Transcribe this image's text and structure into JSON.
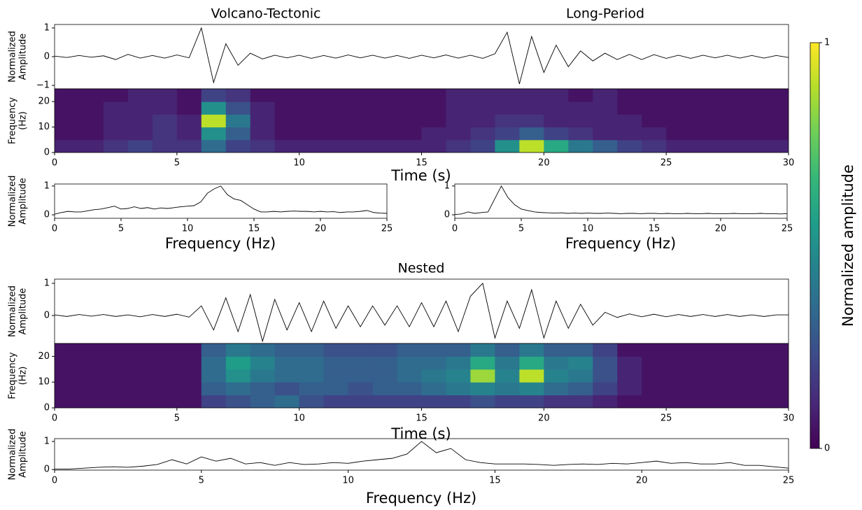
{
  "chart_data": [
    {
      "type": "line",
      "titles": [
        "Volcano-Tectonic",
        "Long-Period"
      ],
      "ylabel": [
        "Normalized",
        "Amplitude"
      ],
      "color": "#000000",
      "x": [
        0,
        0.5,
        1,
        1.5,
        2,
        2.5,
        3,
        3.5,
        4,
        4.5,
        5,
        5.5,
        6,
        6.5,
        7,
        7.5,
        8,
        8.5,
        9,
        9.5,
        10,
        10.5,
        11,
        11.5,
        12,
        12.5,
        13,
        13.5,
        14,
        14.5,
        15,
        15.5,
        16,
        16.5,
        17,
        17.5,
        18,
        18.5,
        19,
        19.5,
        20,
        20.5,
        21,
        21.5,
        22,
        22.5,
        23,
        23.5,
        24,
        24.5,
        25,
        25.5,
        26,
        26.5,
        27,
        27.5,
        28,
        28.5,
        29,
        29.5,
        30
      ],
      "values": [
        0.02,
        -0.03,
        0.04,
        -0.02,
        0.03,
        -0.1,
        0.08,
        -0.05,
        0.04,
        -0.05,
        0.06,
        -0.04,
        1.0,
        -0.9,
        0.45,
        -0.3,
        0.12,
        -0.08,
        0.05,
        -0.04,
        0.05,
        -0.06,
        0.04,
        -0.05,
        0.06,
        -0.04,
        0.05,
        -0.05,
        0.04,
        -0.06,
        0.05,
        -0.04,
        0.06,
        -0.05,
        0.05,
        -0.06,
        0.1,
        0.85,
        -0.95,
        0.7,
        -0.55,
        0.4,
        -0.35,
        0.2,
        -0.15,
        0.12,
        -0.1,
        0.08,
        -0.1,
        0.07,
        -0.06,
        0.05,
        -0.06,
        0.05,
        -0.04,
        0.05,
        -0.05,
        0.04,
        -0.05,
        0.04,
        -0.03
      ],
      "xlim": [
        0,
        30
      ],
      "ylim": [
        -1.12,
        1.12
      ],
      "yticks": [
        {
          "value": -1,
          "label": "−1"
        },
        0,
        1
      ]
    },
    {
      "type": "heatmap",
      "xlabel": "Time (s)",
      "ylabel": [
        "Frequency",
        "(Hz)"
      ],
      "xbins": [
        0,
        1,
        2,
        3,
        4,
        5,
        6,
        7,
        8,
        9,
        10,
        11,
        12,
        13,
        14,
        15,
        16,
        17,
        18,
        19,
        20,
        21,
        22,
        23,
        24,
        25,
        26,
        27,
        28,
        29,
        30
      ],
      "ybins": [
        0,
        5,
        10,
        15,
        20,
        25
      ],
      "values": [
        [
          0.1,
          0.1,
          0.15,
          0.2,
          0.15,
          0.15,
          0.35,
          0.2,
          0.15,
          0.1,
          0.1,
          0.1,
          0.1,
          0.1,
          0.1,
          0.1,
          0.15,
          0.2,
          0.5,
          0.9,
          0.6,
          0.4,
          0.3,
          0.2,
          0.15,
          0.1,
          0.1,
          0.1,
          0.1,
          0.1
        ],
        [
          0.05,
          0.05,
          0.1,
          0.1,
          0.15,
          0.1,
          0.5,
          0.3,
          0.1,
          0.05,
          0.05,
          0.05,
          0.05,
          0.05,
          0.05,
          0.1,
          0.1,
          0.15,
          0.2,
          0.3,
          0.2,
          0.15,
          0.1,
          0.1,
          0.1,
          0.05,
          0.05,
          0.05,
          0.05,
          0.05
        ],
        [
          0.05,
          0.05,
          0.1,
          0.1,
          0.15,
          0.1,
          0.9,
          0.4,
          0.1,
          0.05,
          0.05,
          0.05,
          0.05,
          0.05,
          0.05,
          0.05,
          0.1,
          0.1,
          0.15,
          0.15,
          0.1,
          0.1,
          0.1,
          0.1,
          0.05,
          0.05,
          0.05,
          0.05,
          0.05,
          0.05
        ],
        [
          0.05,
          0.05,
          0.1,
          0.1,
          0.1,
          0.05,
          0.5,
          0.25,
          0.1,
          0.05,
          0.05,
          0.05,
          0.05,
          0.05,
          0.05,
          0.05,
          0.1,
          0.1,
          0.1,
          0.1,
          0.1,
          0.1,
          0.1,
          0.05,
          0.05,
          0.05,
          0.05,
          0.05,
          0.05,
          0.05
        ],
        [
          0.05,
          0.05,
          0.05,
          0.1,
          0.1,
          0.05,
          0.2,
          0.15,
          0.05,
          0.05,
          0.05,
          0.05,
          0.05,
          0.05,
          0.05,
          0.05,
          0.1,
          0.1,
          0.1,
          0.1,
          0.1,
          0.05,
          0.1,
          0.05,
          0.05,
          0.05,
          0.05,
          0.05,
          0.05,
          0.05
        ]
      ],
      "xlim": [
        0,
        30
      ],
      "ylim": [
        0,
        25
      ],
      "xticks": [
        0,
        5,
        10,
        15,
        20,
        25,
        30
      ],
      "yticks": [
        0,
        10,
        20
      ]
    },
    {
      "type": "line",
      "xlabel": "Frequency (Hz)",
      "ylabel": [
        "Normalized",
        "Amplitude"
      ],
      "color": "#000000",
      "x": [
        0,
        0.5,
        1,
        1.5,
        2,
        2.5,
        3,
        3.5,
        4,
        4.5,
        5,
        5.5,
        6,
        6.5,
        7,
        7.5,
        8,
        8.5,
        9,
        9.5,
        10,
        10.5,
        11,
        11.5,
        12,
        12.5,
        13,
        13.5,
        14,
        14.5,
        15,
        15.5,
        16,
        16.5,
        17,
        17.5,
        18,
        18.5,
        19,
        19.5,
        20,
        20.5,
        21,
        21.5,
        22,
        22.5,
        23,
        23.5,
        24,
        24.5,
        25
      ],
      "values": [
        0.02,
        0.08,
        0.12,
        0.1,
        0.1,
        0.14,
        0.18,
        0.2,
        0.25,
        0.3,
        0.2,
        0.22,
        0.28,
        0.22,
        0.25,
        0.2,
        0.24,
        0.22,
        0.25,
        0.28,
        0.3,
        0.32,
        0.45,
        0.75,
        0.9,
        1.0,
        0.7,
        0.55,
        0.5,
        0.35,
        0.2,
        0.1,
        0.1,
        0.12,
        0.1,
        0.12,
        0.13,
        0.12,
        0.12,
        0.1,
        0.12,
        0.1,
        0.11,
        0.08,
        0.1,
        0.1,
        0.12,
        0.15,
        0.08,
        0.06,
        0.05
      ],
      "xlim": [
        0,
        25
      ],
      "ylim": [
        -0.12,
        1.07
      ],
      "xticks": [
        0,
        5,
        10,
        15,
        20,
        25
      ],
      "yticks": [
        0,
        1
      ]
    },
    {
      "type": "line",
      "xlabel": "Frequency (Hz)",
      "color": "#000000",
      "x": [
        0,
        0.5,
        1,
        1.5,
        2,
        2.5,
        3,
        3.5,
        4,
        4.5,
        5,
        5.5,
        6,
        6.5,
        7,
        7.5,
        8,
        8.5,
        9,
        9.5,
        10,
        10.5,
        11,
        11.5,
        12,
        12.5,
        13,
        13.5,
        14,
        14.5,
        15,
        15.5,
        16,
        16.5,
        17,
        17.5,
        18,
        18.5,
        19,
        19.5,
        20,
        20.5,
        21,
        21.5,
        22,
        22.5,
        23,
        23.5,
        24,
        24.5,
        25
      ],
      "values": [
        0.01,
        0.03,
        0.1,
        0.05,
        0.08,
        0.1,
        0.55,
        1.0,
        0.6,
        0.35,
        0.2,
        0.15,
        0.1,
        0.08,
        0.07,
        0.06,
        0.07,
        0.05,
        0.06,
        0.05,
        0.06,
        0.05,
        0.05,
        0.06,
        0.05,
        0.04,
        0.05,
        0.05,
        0.04,
        0.05,
        0.05,
        0.04,
        0.05,
        0.04,
        0.04,
        0.05,
        0.04,
        0.04,
        0.05,
        0.04,
        0.04,
        0.04,
        0.05,
        0.04,
        0.04,
        0.04,
        0.05,
        0.04,
        0.04,
        0.03,
        0.04
      ],
      "xlim": [
        0,
        25
      ],
      "ylim": [
        -0.12,
        1.07
      ],
      "xticks": [
        0,
        5,
        10,
        15,
        20,
        25
      ],
      "yticks": [
        0,
        1
      ]
    },
    {
      "type": "line",
      "titles": [
        "Nested"
      ],
      "ylabel": [
        "Normalized",
        "Amplitude"
      ],
      "color": "#000000",
      "x": [
        0,
        0.5,
        1,
        1.5,
        2,
        2.5,
        3,
        3.5,
        4,
        4.5,
        5,
        5.5,
        6,
        6.5,
        7,
        7.5,
        8,
        8.5,
        9,
        9.5,
        10,
        10.5,
        11,
        11.5,
        12,
        12.5,
        13,
        13.5,
        14,
        14.5,
        15,
        15.5,
        16,
        16.5,
        17,
        17.5,
        18,
        18.5,
        19,
        19.5,
        20,
        20.5,
        21,
        21.5,
        22,
        22.5,
        23,
        23.5,
        24,
        24.5,
        25,
        25.5,
        26,
        26.5,
        27,
        27.5,
        28,
        28.5,
        29,
        29.5,
        30
      ],
      "values": [
        0.02,
        -0.03,
        0.03,
        -0.02,
        0.03,
        -0.03,
        0.02,
        -0.04,
        0.03,
        -0.03,
        0.04,
        -0.05,
        0.3,
        -0.45,
        0.55,
        -0.5,
        0.65,
        -0.8,
        0.5,
        -0.45,
        0.4,
        -0.5,
        0.45,
        -0.4,
        0.3,
        -0.35,
        0.3,
        -0.3,
        0.3,
        -0.35,
        0.4,
        -0.35,
        0.45,
        -0.5,
        0.6,
        1.0,
        -0.7,
        0.45,
        -0.4,
        0.8,
        -0.7,
        0.45,
        -0.4,
        0.35,
        -0.3,
        0.1,
        -0.06,
        0.05,
        -0.04,
        0.04,
        -0.04,
        0.03,
        -0.03,
        0.03,
        -0.03,
        0.03,
        -0.03,
        0.02,
        -0.03,
        0.02,
        0.02
      ],
      "xlim": [
        0,
        30
      ],
      "ylim": [
        -0.87,
        1.13
      ],
      "yticks": [
        0,
        1
      ]
    },
    {
      "type": "heatmap",
      "xlabel": "Time (s)",
      "ylabel": [
        "Frequency",
        "(Hz)"
      ],
      "xbins": [
        0,
        1,
        2,
        3,
        4,
        5,
        6,
        7,
        8,
        9,
        10,
        11,
        12,
        13,
        14,
        15,
        16,
        17,
        18,
        19,
        20,
        21,
        22,
        23,
        24,
        25,
        26,
        27,
        28,
        29,
        30
      ],
      "ybins": [
        0,
        5,
        10,
        15,
        20,
        25
      ],
      "values": [
        [
          0.05,
          0.05,
          0.05,
          0.05,
          0.05,
          0.05,
          0.2,
          0.25,
          0.3,
          0.35,
          0.25,
          0.2,
          0.2,
          0.2,
          0.2,
          0.2,
          0.2,
          0.25,
          0.2,
          0.2,
          0.15,
          0.15,
          0.1,
          0.05,
          0.05,
          0.05,
          0.05,
          0.05,
          0.05,
          0.05
        ],
        [
          0.05,
          0.05,
          0.05,
          0.05,
          0.05,
          0.05,
          0.3,
          0.35,
          0.3,
          0.25,
          0.3,
          0.3,
          0.25,
          0.3,
          0.3,
          0.35,
          0.4,
          0.45,
          0.4,
          0.45,
          0.35,
          0.3,
          0.2,
          0.1,
          0.05,
          0.05,
          0.05,
          0.05,
          0.05,
          0.05
        ],
        [
          0.05,
          0.05,
          0.05,
          0.05,
          0.05,
          0.05,
          0.35,
          0.5,
          0.4,
          0.35,
          0.35,
          0.3,
          0.3,
          0.3,
          0.35,
          0.4,
          0.45,
          0.85,
          0.45,
          0.9,
          0.45,
          0.4,
          0.25,
          0.1,
          0.05,
          0.05,
          0.05,
          0.05,
          0.05,
          0.05
        ],
        [
          0.05,
          0.05,
          0.05,
          0.05,
          0.05,
          0.05,
          0.35,
          0.55,
          0.45,
          0.35,
          0.35,
          0.3,
          0.3,
          0.3,
          0.35,
          0.35,
          0.4,
          0.6,
          0.4,
          0.6,
          0.4,
          0.45,
          0.25,
          0.1,
          0.05,
          0.05,
          0.05,
          0.05,
          0.05,
          0.05
        ],
        [
          0.05,
          0.05,
          0.05,
          0.05,
          0.05,
          0.05,
          0.3,
          0.4,
          0.35,
          0.3,
          0.3,
          0.25,
          0.25,
          0.25,
          0.3,
          0.3,
          0.3,
          0.4,
          0.3,
          0.4,
          0.3,
          0.3,
          0.2,
          0.05,
          0.05,
          0.05,
          0.05,
          0.05,
          0.05,
          0.05
        ]
      ],
      "xlim": [
        0,
        30
      ],
      "ylim": [
        0,
        25
      ],
      "xticks": [
        0,
        5,
        10,
        15,
        20,
        25,
        30
      ],
      "yticks": [
        0,
        10,
        20
      ]
    },
    {
      "type": "line",
      "xlabel": "Frequency (Hz)",
      "ylabel": [
        "Normalized",
        "Amplitude"
      ],
      "color": "#000000",
      "x": [
        0,
        0.5,
        1,
        1.5,
        2,
        2.5,
        3,
        3.5,
        4,
        4.5,
        5,
        5.5,
        6,
        6.5,
        7,
        7.5,
        8,
        8.5,
        9,
        9.5,
        10,
        10.5,
        11,
        11.5,
        12,
        12.5,
        13,
        13.5,
        14,
        14.5,
        15,
        15.5,
        16,
        16.5,
        17,
        17.5,
        18,
        18.5,
        19,
        19.5,
        20,
        20.5,
        21,
        21.5,
        22,
        22.5,
        23,
        23.5,
        24,
        24.5,
        25
      ],
      "values": [
        0.02,
        0.02,
        0.05,
        0.08,
        0.1,
        0.08,
        0.12,
        0.18,
        0.35,
        0.2,
        0.45,
        0.3,
        0.4,
        0.2,
        0.25,
        0.15,
        0.25,
        0.18,
        0.2,
        0.25,
        0.22,
        0.3,
        0.35,
        0.4,
        0.55,
        1.0,
        0.6,
        0.75,
        0.35,
        0.25,
        0.2,
        0.2,
        0.2,
        0.18,
        0.15,
        0.18,
        0.2,
        0.18,
        0.22,
        0.2,
        0.25,
        0.3,
        0.22,
        0.25,
        0.2,
        0.2,
        0.25,
        0.15,
        0.15,
        0.1,
        0.05
      ],
      "xlim": [
        0,
        25
      ],
      "ylim": [
        -0.02,
        1.1
      ],
      "xticks": [
        0,
        5,
        10,
        15,
        20,
        25
      ],
      "yticks": [
        0,
        1
      ]
    },
    {
      "type": "colorbar",
      "label": "Normalized amplitude",
      "ylim": [
        0,
        1
      ],
      "yticks": [
        0,
        1
      ],
      "colors": [
        "#440154",
        "#482878",
        "#3e4989",
        "#31688e",
        "#26828e",
        "#1f9e89",
        "#35b779",
        "#6ece58",
        "#b5de2b",
        "#fde725"
      ]
    }
  ]
}
